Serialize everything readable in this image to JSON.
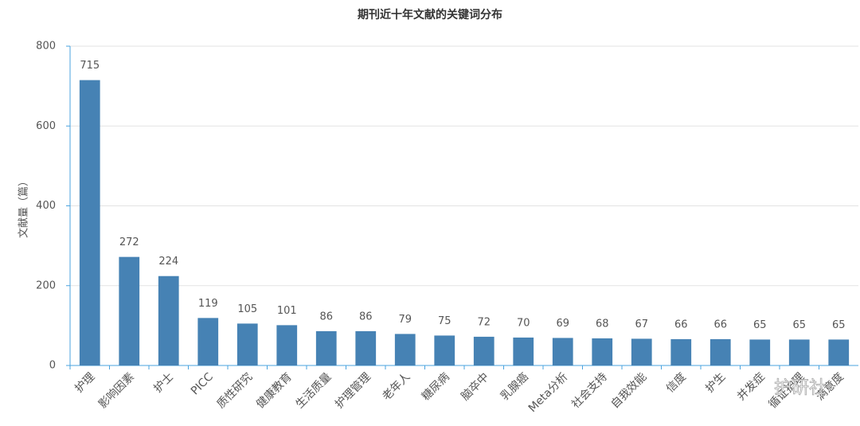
{
  "chart_data": {
    "type": "bar",
    "title": "期刊近十年文献的关键词分布",
    "y_label": "文献量（篇）",
    "categories": [
      "护理",
      "影响因素",
      "护士",
      "PICC",
      "质性研究",
      "健康教育",
      "生活质量",
      "护理管理",
      "老年人",
      "糖尿病",
      "脑卒中",
      "乳腺癌",
      "Meta分析",
      "社会支持",
      "自我效能",
      "信度",
      "护生",
      "并发症",
      "循证护理",
      "满意度"
    ],
    "values": [
      715,
      272,
      224,
      119,
      105,
      101,
      86,
      86,
      79,
      75,
      72,
      70,
      69,
      68,
      67,
      66,
      66,
      65,
      65,
      65
    ],
    "color": "#4682b4",
    "ylim": [
      0,
      800
    ],
    "yticks": [
      0,
      200,
      400,
      600,
      800
    ],
    "grid": true,
    "watermark": "护研社"
  }
}
